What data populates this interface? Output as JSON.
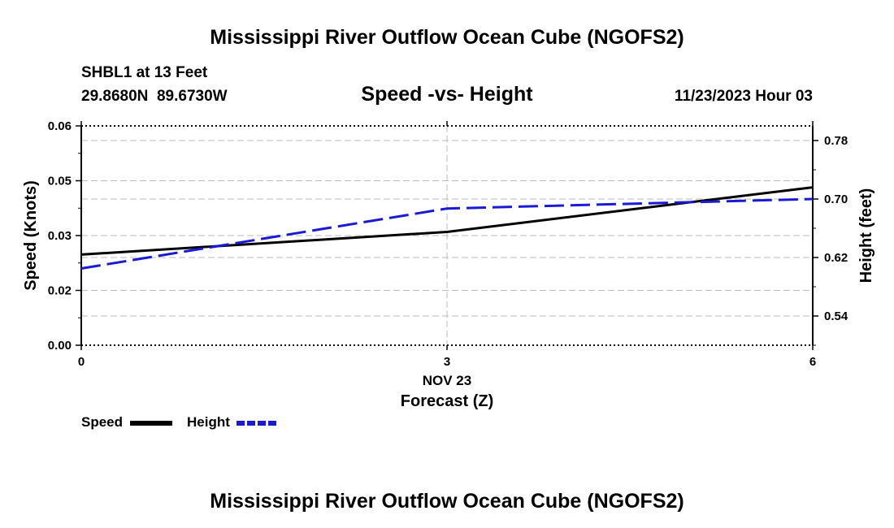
{
  "colors": {
    "background": "#ffffff",
    "speed_line": "#000000",
    "height_line": "#1a1ad4",
    "grid": "#bbbbbb",
    "axis": "#000000"
  },
  "chart_data": {
    "type": "line",
    "title": "Mississippi River Outflow Ocean Cube (NGOFS2)",
    "subtitle": "Speed -vs- Height",
    "station": "SHBL1 at 13 Feet",
    "location": "29.8680N  89.6730W",
    "datetime": "11/23/2023 Hour 03",
    "xlabel": "Forecast (Z)",
    "x_date_label": "NOV 23",
    "ylabel": "Speed (Knots)",
    "y2label": "Height (feet)",
    "xlim": [
      0,
      6
    ],
    "ylim": [
      0,
      0.06
    ],
    "y2lim": [
      0.5,
      0.8
    ],
    "x_ticks": [
      0,
      3,
      6
    ],
    "x_tick_labels": [
      "0",
      "3",
      "6"
    ],
    "y_ticks": [
      0,
      0.015,
      0.03,
      0.045,
      0.06
    ],
    "y_tick_labels": [
      "0.00",
      "0.02",
      "0.03",
      "0.05",
      "0.06"
    ],
    "y2_ticks": [
      0.54,
      0.62,
      0.7,
      0.78
    ],
    "y2_tick_labels": [
      "0.54",
      "0.62",
      "0.70",
      "0.78"
    ],
    "grid": true,
    "legend_position": "bottom-left",
    "series": [
      {
        "name": "Speed",
        "axis": "left",
        "style": "solid",
        "x": [
          0,
          3,
          6
        ],
        "values": [
          0.0248,
          0.031,
          0.0432
        ]
      },
      {
        "name": "Height",
        "axis": "right",
        "style": "dashed",
        "x": [
          0,
          3,
          6
        ],
        "values": [
          0.605,
          0.687,
          0.7
        ]
      }
    ],
    "footer_title": "Mississippi River Outflow Ocean Cube (NGOFS2)"
  }
}
